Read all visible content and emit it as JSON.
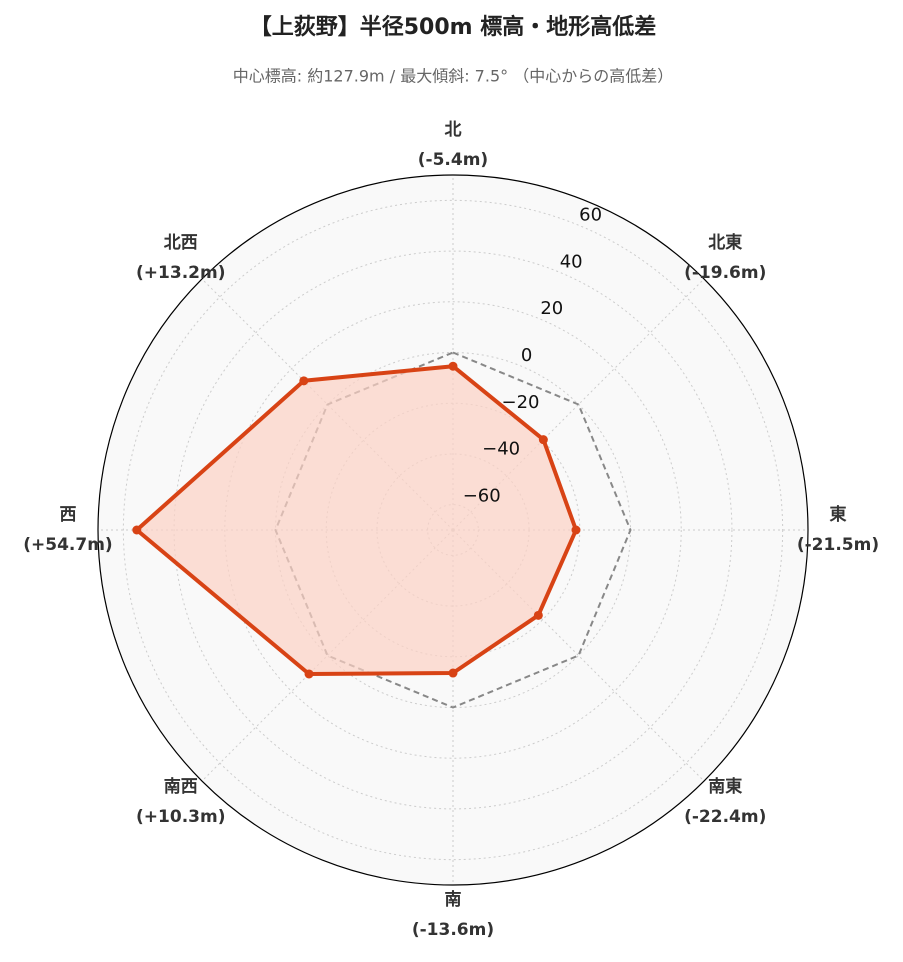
{
  "chart_data": {
    "type": "radar",
    "title": "【上荻野】半径500m 標高・地形高低差",
    "subtitle": "中心標高: 約127.9m / 最大傾斜: 7.5° （中心からの高低差）",
    "categories": [
      "北",
      "北東",
      "東",
      "南東",
      "南",
      "南西",
      "西",
      "北西"
    ],
    "series": [
      {
        "color": "#d84315",
        "fill": "#fcd2c4",
        "values": [
          -5.4,
          -19.6,
          -21.5,
          -22.4,
          -13.6,
          10.3,
          54.7,
          13.2
        ],
        "value_labels": [
          "(-5.4m)",
          "(-19.6m)",
          "(-21.5m)",
          "(-22.4m)",
          "(-13.6m)",
          "(+10.3m)",
          "(+54.7m)",
          "(+13.2m)"
        ]
      },
      {
        "color": "#888888",
        "dashed": true,
        "values": [
          0,
          0,
          0,
          0,
          0,
          0,
          0,
          0
        ]
      }
    ],
    "ylim": [
      -70,
      70
    ],
    "yticks": [
      {
        "value": -60,
        "label": "−60"
      },
      {
        "value": -40,
        "label": "−40"
      },
      {
        "value": -20,
        "label": "−20"
      },
      0,
      20,
      40,
      60
    ],
    "grid": true
  }
}
